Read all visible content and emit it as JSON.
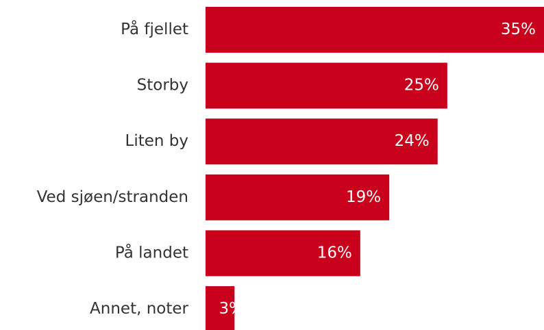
{
  "chart_data": {
    "type": "barh",
    "categories": [
      "På fjellet",
      "Storby",
      "Liten by",
      "Ved sjøen/stranden",
      "På landet",
      "Annet, noter"
    ],
    "values": [
      35,
      25,
      24,
      19,
      16,
      3
    ],
    "value_labels": [
      "35%",
      "25%",
      "24%",
      "19%",
      "16%",
      "3%"
    ],
    "color": "#c8001c"
  }
}
